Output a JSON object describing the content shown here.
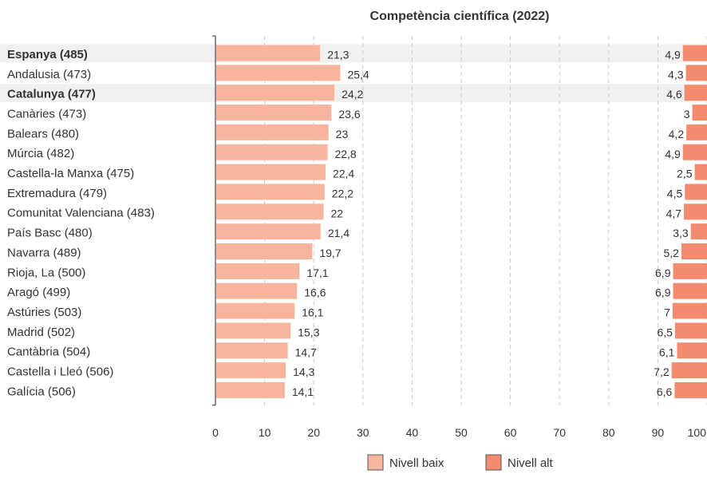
{
  "chart_data": {
    "type": "bar",
    "title": "Competència científica (2022)",
    "categories": [
      "Espanya (485)",
      "Andalusia (473)",
      "Catalunya (477)",
      "Canàries (473)",
      "Balears (480)",
      "Múrcia (482)",
      "Castella-la Manxa (475)",
      "Extremadura (479)",
      "Comunitat Valenciana (483)",
      "País Basc (480)",
      "Navarra (489)",
      "Rioja, La (500)",
      "Aragó (499)",
      "Astúries (503)",
      "Madrid (502)",
      "Cantàbria (504)",
      "Castella i Lleó (506)",
      "Galícia (506)"
    ],
    "highlighted": [
      "Espanya (485)",
      "Catalunya (477)"
    ],
    "series": [
      {
        "name": "Nivell baix",
        "color": "#f7b59d",
        "values": [
          21.3,
          25.4,
          24.2,
          23.6,
          23,
          22.8,
          22.4,
          22.2,
          22,
          21.4,
          19.7,
          17.1,
          16.6,
          16.1,
          15.3,
          14.7,
          14.3,
          14.1
        ],
        "labels": [
          "21,3",
          "25,4",
          "24,2",
          "23,6",
          "23",
          "22,8",
          "22,4",
          "22,2",
          "22",
          "21,4",
          "19,7",
          "17,1",
          "16,6",
          "16,1",
          "15,3",
          "14,7",
          "14,3",
          "14,1"
        ]
      },
      {
        "name": "Nivell alt",
        "color": "#f38b6e",
        "values": [
          4.9,
          4.3,
          4.6,
          3,
          4.2,
          4.9,
          2.5,
          4.5,
          4.7,
          3.3,
          5.2,
          6.9,
          6.9,
          7,
          6.5,
          6.1,
          7.2,
          6.6
        ],
        "labels": [
          "4,9",
          "4,3",
          "4,6",
          "3",
          "4,2",
          "4,9",
          "2,5",
          "4,5",
          "4,7",
          "3,3",
          "5,2",
          "6,9",
          "6,9",
          "7",
          "6,5",
          "6,1",
          "7,2",
          "6,6"
        ]
      }
    ],
    "xlim": [
      0,
      100
    ],
    "xticks": [
      0,
      10,
      20,
      30,
      40,
      50,
      60,
      70,
      80,
      90,
      100
    ],
    "grid": "vertical-dashed",
    "legend": "bottom-center"
  }
}
